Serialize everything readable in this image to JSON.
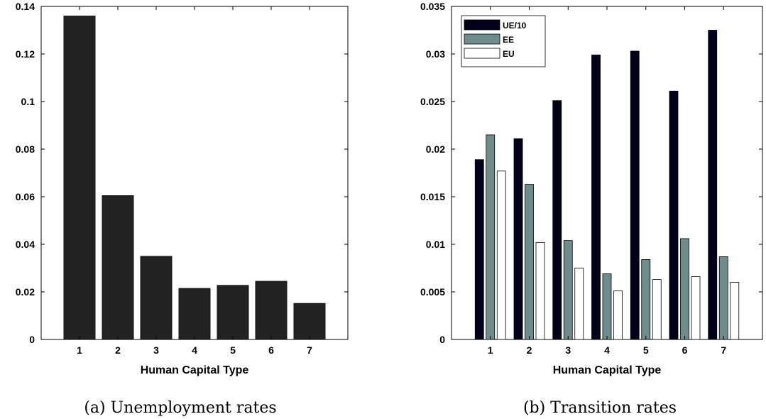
{
  "chart_data": [
    {
      "type": "bar",
      "categories": [
        "1",
        "2",
        "3",
        "4",
        "5",
        "6",
        "7"
      ],
      "values": [
        0.136,
        0.0605,
        0.035,
        0.0215,
        0.0228,
        0.0245,
        0.0152
      ],
      "title": "",
      "xlabel": "Human Capital Type",
      "ylabel": "",
      "ylim": [
        0,
        0.14
      ],
      "yticks": [
        "0",
        "0.02",
        "0.04",
        "0.06",
        "0.08",
        "0.1",
        "0.12",
        "0.14"
      ],
      "caption": "(a) Unemployment rates",
      "colors": {
        "bar": "#222222"
      }
    },
    {
      "type": "bar",
      "categories": [
        "1",
        "2",
        "3",
        "4",
        "5",
        "6",
        "7"
      ],
      "series": [
        {
          "name": "UE/10",
          "color": "#00001a",
          "values": [
            0.0189,
            0.0211,
            0.0251,
            0.0299,
            0.0303,
            0.0261,
            0.0325
          ]
        },
        {
          "name": "EE",
          "color": "#6e8c8c",
          "values": [
            0.0215,
            0.0163,
            0.0104,
            0.0069,
            0.0084,
            0.0106,
            0.0087
          ]
        },
        {
          "name": "EU",
          "color": "#ffffff",
          "values": [
            0.0177,
            0.0102,
            0.0075,
            0.0051,
            0.0063,
            0.0066,
            0.006
          ]
        }
      ],
      "title": "",
      "xlabel": "Human Capital Type",
      "ylabel": "",
      "ylim": [
        0,
        0.035
      ],
      "yticks": [
        "0",
        "0.005",
        "0.01",
        "0.015",
        "0.02",
        "0.025",
        "0.03",
        "0.035"
      ],
      "legend": "top-left",
      "caption": "(b) Transition rates"
    }
  ]
}
